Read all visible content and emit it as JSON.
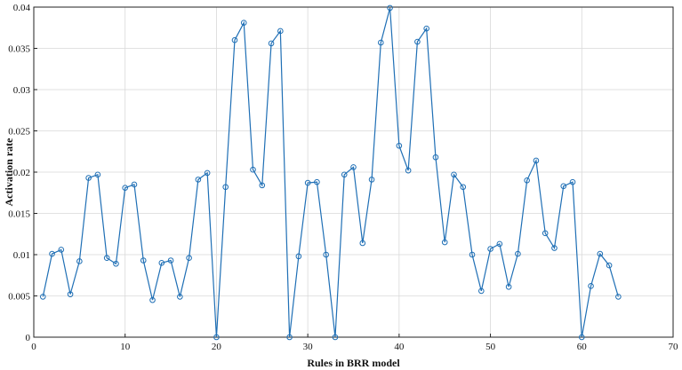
{
  "chart_data": {
    "type": "line",
    "title": "",
    "xlabel": "Rules in BRR model",
    "ylabel": "Activation rate",
    "xlim": [
      0,
      70
    ],
    "ylim": [
      0,
      0.04
    ],
    "xticks": [
      0,
      10,
      20,
      30,
      40,
      50,
      60,
      70
    ],
    "yticks": [
      0,
      0.005,
      0.01,
      0.015,
      0.02,
      0.025,
      0.03,
      0.035,
      0.04
    ],
    "xtick_labels": [
      "0",
      "10",
      "20",
      "30",
      "40",
      "50",
      "60",
      "70"
    ],
    "ytick_labels": [
      "0",
      "0.005",
      "0.01",
      "0.015",
      "0.02",
      "0.025",
      "0.03",
      "0.035",
      "0.04"
    ],
    "grid": true,
    "marker": "circle",
    "color": "#1f6fb5",
    "series": [
      {
        "x": [
          1,
          2,
          3,
          4,
          5,
          6,
          7,
          8,
          9,
          10,
          11,
          12,
          13,
          14,
          15,
          16,
          17,
          18,
          19,
          20,
          21,
          22,
          23,
          24,
          25,
          26,
          27,
          28,
          29,
          30,
          31,
          32,
          33,
          34,
          35,
          36,
          37,
          38,
          39,
          40,
          41,
          42,
          43,
          44,
          45,
          46,
          47,
          48,
          49,
          50,
          51,
          52,
          53,
          54,
          55,
          56,
          57,
          58,
          59,
          60,
          61,
          62,
          63,
          64
        ],
        "values": [
          0.0049,
          0.0101,
          0.0106,
          0.0052,
          0.0092,
          0.0193,
          0.0197,
          0.0096,
          0.0089,
          0.0181,
          0.0185,
          0.0093,
          0.0045,
          0.009,
          0.0093,
          0.0049,
          0.0096,
          0.0191,
          0.0199,
          0.0,
          0.0182,
          0.036,
          0.0381,
          0.0203,
          0.0184,
          0.0356,
          0.0371,
          0.0,
          0.0098,
          0.0187,
          0.0188,
          0.01,
          0.0,
          0.0197,
          0.0206,
          0.0114,
          0.0191,
          0.0357,
          0.0399,
          0.0232,
          0.0202,
          0.0358,
          0.0374,
          0.0218,
          0.0115,
          0.0197,
          0.0182,
          0.01,
          0.0056,
          0.0107,
          0.0113,
          0.0061,
          0.0101,
          0.019,
          0.0214,
          0.0126,
          0.0108,
          0.0183,
          0.0188,
          0.0,
          0.0062,
          0.0101,
          0.0087,
          0.0049
        ]
      }
    ]
  }
}
